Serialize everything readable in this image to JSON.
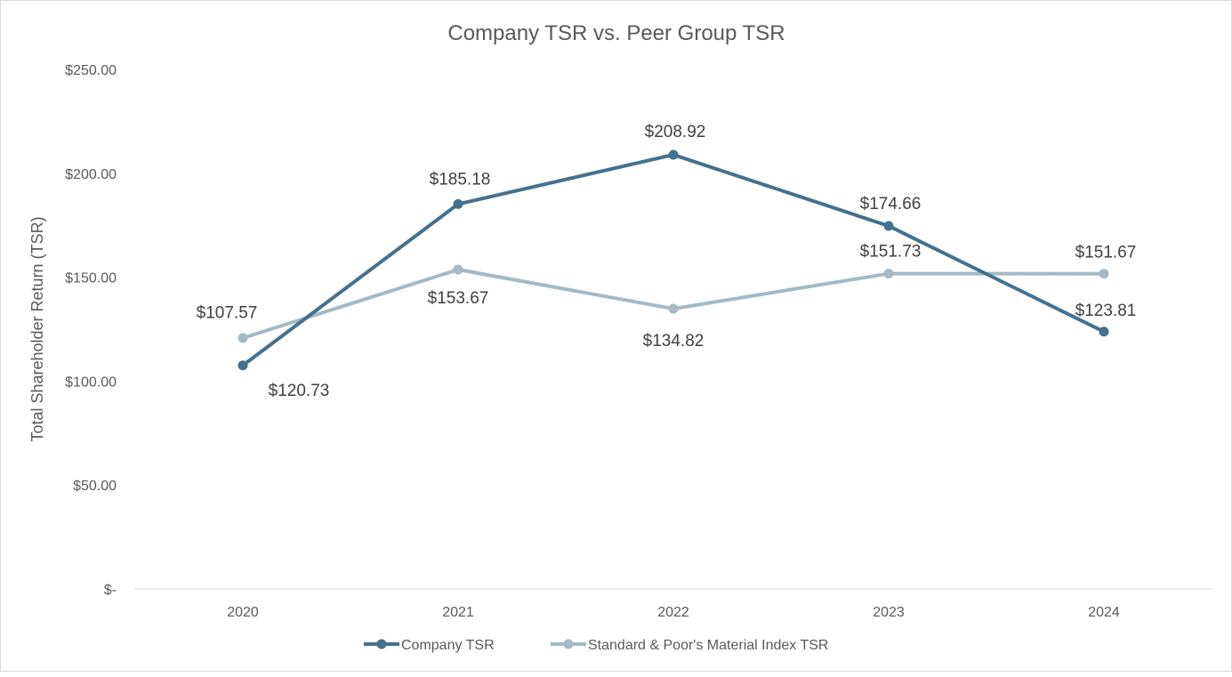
{
  "chart_data": {
    "type": "line",
    "title": "Company TSR vs. Peer Group TSR",
    "xlabel": "",
    "ylabel": "Total Shareholder Return (TSR)",
    "ylim": [
      0,
      250
    ],
    "y_ticks": [
      0,
      50,
      100,
      150,
      200,
      250
    ],
    "y_tick_labels": [
      "$-",
      "$50.00",
      "$100.00",
      "$150.00",
      "$200.00",
      "$250.00"
    ],
    "categories": [
      "2020",
      "2021",
      "2022",
      "2023",
      "2024"
    ],
    "grid": false,
    "legend_position": "bottom",
    "series": [
      {
        "name": "Company TSR",
        "color": "#44718f",
        "values": [
          107.57,
          185.18,
          208.92,
          174.66,
          123.81
        ],
        "data_labels": [
          "$107.57",
          "$185.18",
          "$208.92",
          "$174.66",
          "$123.81"
        ]
      },
      {
        "name": "Standard & Poor's Material Index TSR",
        "color": "#a3b9c6",
        "values": [
          120.73,
          153.67,
          134.82,
          151.73,
          151.67
        ],
        "data_labels": [
          "$120.73",
          "$153.67",
          "$134.82",
          "$151.73",
          "$151.67"
        ]
      }
    ]
  }
}
